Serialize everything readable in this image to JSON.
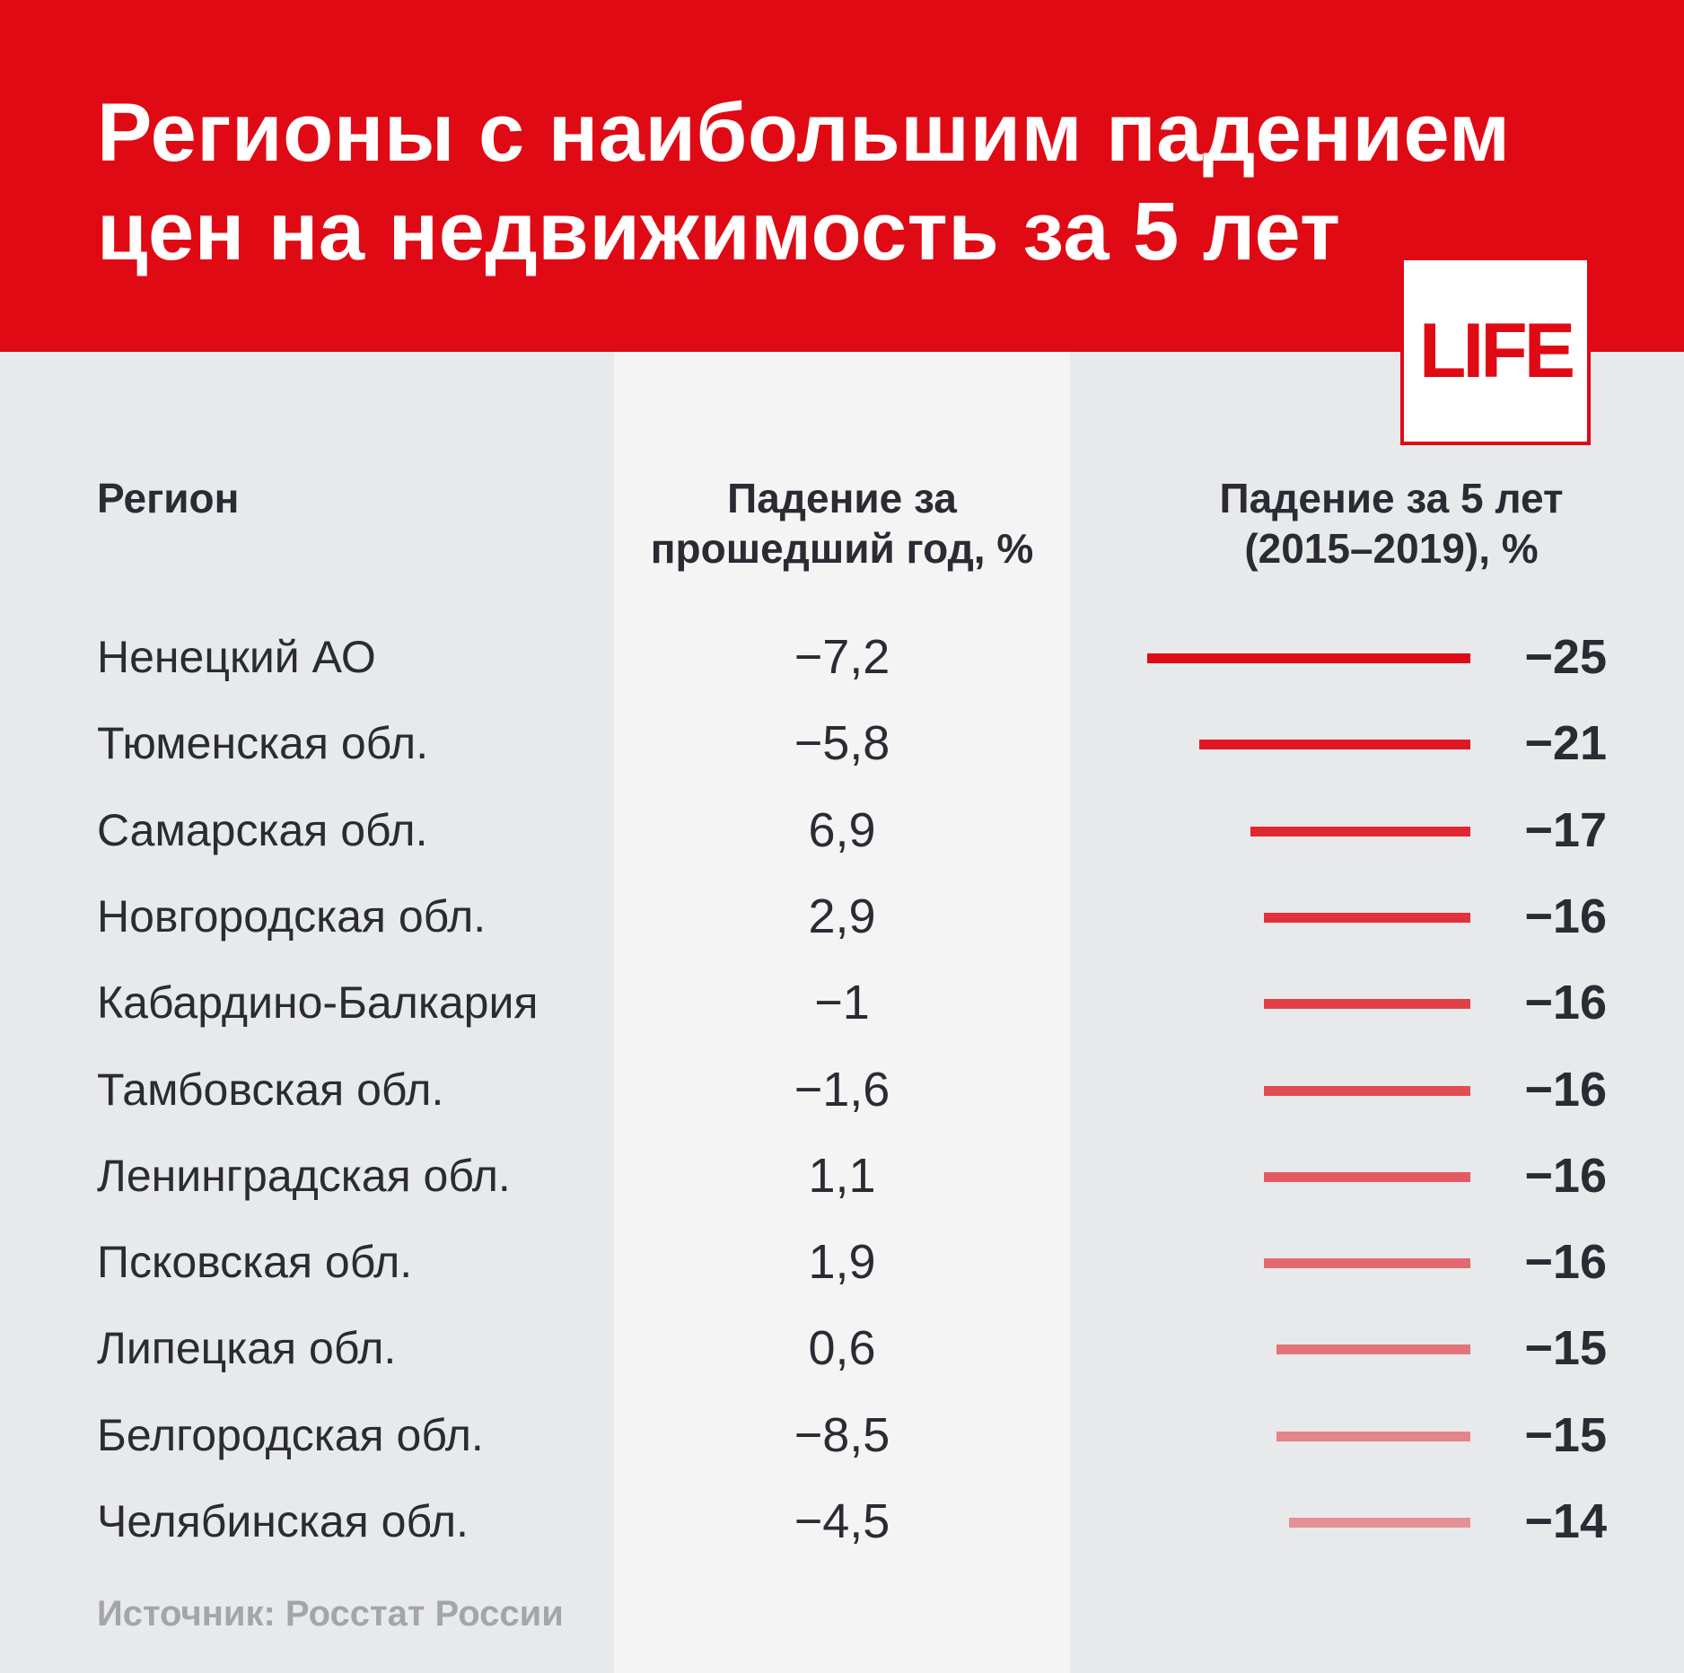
{
  "header": {
    "title_line1": "Регионы с наибольшим падением",
    "title_line2": "цен на недвижимость за 5 лет",
    "background_color": "#e00a14"
  },
  "logo": {
    "text": "LIFE"
  },
  "columns": {
    "region": "Регион",
    "year_line1": "Падение за",
    "year_line2": "прошедший год, %",
    "five_line1": "Падение за 5 лет",
    "five_line2": "(2015–2019), %"
  },
  "chart_data": {
    "type": "bar",
    "orientation": "horizontal",
    "categories": [
      "Ненецкий АО",
      "Тюменская обл.",
      "Самарская обл.",
      "Новгородская обл.",
      "Кабардино-Балкария",
      "Тамбовская обл.",
      "Ленинградская обл.",
      "Псковская обл.",
      "Липецкая обл.",
      "Белгородская обл.",
      "Челябинская обл."
    ],
    "series": [
      {
        "name": "Падение за прошедший год, %",
        "values": [
          -7.2,
          -5.8,
          6.9,
          2.9,
          -1,
          -1.6,
          1.1,
          1.9,
          0.6,
          -8.5,
          -4.5
        ]
      },
      {
        "name": "Падение за 5 лет (2015–2019), %",
        "values": [
          -25,
          -21,
          -17,
          -16,
          -16,
          -16,
          -16,
          -16,
          -15,
          -15,
          -14
        ]
      }
    ],
    "year_labels": [
      "−7,2",
      "−5,8",
      "6,9",
      "2,9",
      "−1",
      "−1,6",
      "1,1",
      "1,9",
      "0,6",
      "−8,5",
      "−4,5"
    ],
    "five_labels": [
      "−25",
      "−21",
      "−17",
      "−16",
      "−16",
      "−16",
      "−16",
      "−16",
      "−15",
      "−15",
      "−14"
    ],
    "bar_color": "#e00a14",
    "bar_opacity_range": [
      1.0,
      0.4
    ]
  },
  "source": "Источник: Росстат России"
}
